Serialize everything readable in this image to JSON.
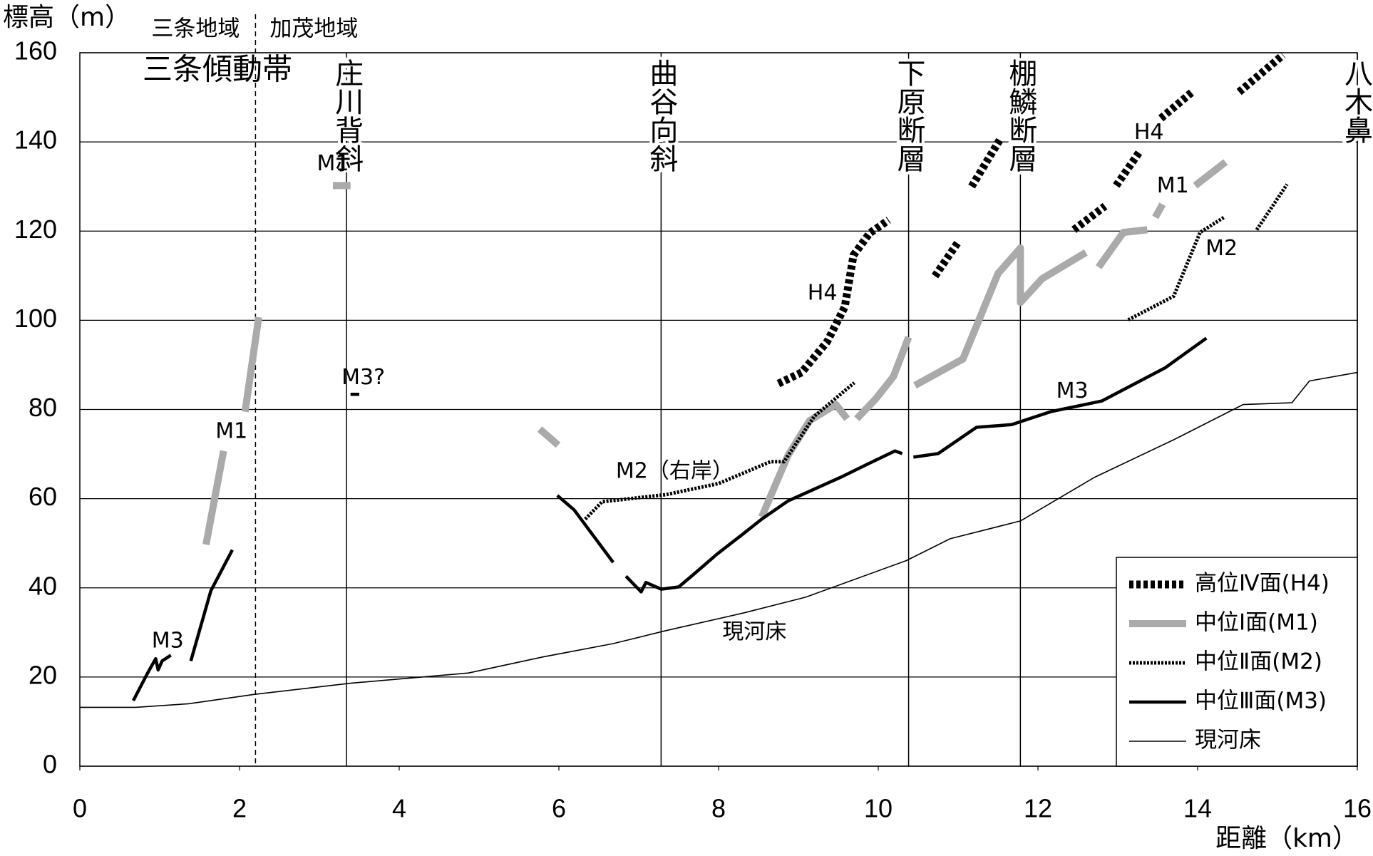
{
  "chart_data": {
    "type": "line",
    "y_label": "標高（m）",
    "x_label": "距離（km）",
    "regions": {
      "left": "三条地域",
      "right": "加茂地域",
      "boundary": 2.2
    },
    "zone_label": "三条傾動帯",
    "xlim": [
      0,
      16
    ],
    "xticks": [
      0,
      2,
      4,
      6,
      8,
      10,
      12,
      14,
      16
    ],
    "ylim": [
      0,
      160
    ],
    "yticks": [
      0,
      20,
      40,
      60,
      80,
      100,
      120,
      140,
      160
    ],
    "grid": true,
    "legend": "lower right",
    "markers": [
      {
        "x": 3.34,
        "label": "庄川背斜"
      },
      {
        "x": 7.28,
        "label": "曲谷向斜"
      },
      {
        "x": 10.38,
        "label": "下原断層"
      },
      {
        "x": 11.78,
        "label": "棚鱗断層"
      },
      {
        "x": 16,
        "label": "八木鼻"
      }
    ],
    "series": [
      {
        "name": "高位Ⅳ面(H4)",
        "color": "#000000",
        "style": "heavy-dashed",
        "x": [
          8.75,
          9.04,
          9.36,
          9.58,
          9.69,
          9.89,
          10.13,
          null,
          10.71,
          11.01,
          null,
          11.17,
          11.52,
          null,
          12.45,
          12.84,
          null,
          12.98,
          13.28,
          null,
          13.54,
          13.93,
          null,
          14.52,
          15.07
        ],
        "values": [
          85.8,
          88.3,
          95.2,
          103,
          114.6,
          119.5,
          122.5,
          null,
          109.9,
          117.8,
          null,
          130,
          140.4,
          null,
          120.3,
          125.6,
          null,
          130.2,
          138,
          null,
          145.3,
          151.2,
          null,
          151.2,
          159.5
        ]
      },
      {
        "name": "中位Ⅰ面(M1)",
        "color": "#aaaaaa",
        "style": "heavy",
        "x": [
          3.17,
          3.39,
          null,
          1.58,
          1.8,
          null,
          2.07,
          2.24,
          null,
          5.76,
          5.99,
          null,
          8.54,
          8.87,
          9.14,
          9.47,
          9.61,
          null,
          9.73,
          9.97,
          10.19,
          10.38,
          null,
          10.46,
          11.06,
          11.5,
          11.78,
          11.78,
          12.05,
          12.6,
          null,
          12.76,
          13.07,
          13.37,
          null,
          13.47,
          13.56,
          null,
          13.97,
          14.35
        ],
        "values": [
          130.2,
          130.2,
          null,
          49.7,
          70.7,
          null,
          79.5,
          100.7,
          null,
          75.6,
          72,
          null,
          55.9,
          69.7,
          77.5,
          81.1,
          77.9,
          null,
          77.9,
          82.4,
          87.4,
          96.2,
          null,
          85.4,
          91.3,
          110.5,
          116.2,
          104,
          109.3,
          115.2,
          null,
          111.9,
          119.7,
          120.3,
          null,
          123.1,
          126,
          null,
          130.2,
          135.5
        ]
      },
      {
        "name": "中位Ⅱ面(M2)",
        "color": "#000000",
        "style": "dotted",
        "x": [
          6.33,
          6.54,
          7.34,
          8.0,
          8.65,
          8.82,
          9.2,
          9.7,
          null,
          13.13,
          13.7,
          14.03,
          14.33,
          null,
          14.74,
          15.12
        ],
        "values": [
          55.4,
          59.3,
          60.9,
          63.4,
          68.3,
          68.3,
          78.5,
          86,
          null,
          100.1,
          105.4,
          119.7,
          123.1,
          null,
          120.3,
          130.5
        ]
      },
      {
        "name": "中位Ⅲ面(M3)",
        "color": "#000000",
        "style": "solid",
        "x": [
          0.67,
          0.84,
          0.95,
          0.98,
          1.03,
          1.14,
          null,
          1.39,
          1.64,
          1.91,
          null,
          3.39,
          3.5,
          null,
          5.98,
          6.19,
          6.68,
          null,
          6.84,
          7.03,
          7.09,
          7.28,
          7.5,
          7.66,
          7.99,
          8.3,
          8.54,
          8.87,
          9.53,
          9.86,
          10.21,
          10.3,
          null,
          10.44,
          10.75,
          11.23,
          11.67,
          12.16,
          12.8,
          13.59,
          14.11
        ],
        "values": [
          14.7,
          20.6,
          24.1,
          21.6,
          23.6,
          24.9,
          null,
          23.6,
          39.3,
          48.5,
          null,
          83.4,
          83.4,
          null,
          60.7,
          57.5,
          45.7,
          null,
          42.6,
          39.1,
          41.2,
          39.7,
          40.2,
          42.6,
          47.7,
          52,
          55.4,
          59.5,
          64.8,
          67.7,
          70.7,
          70.1,
          null,
          69.3,
          70.1,
          76,
          76.6,
          79.5,
          81.9,
          89.3,
          96
        ]
      },
      {
        "name": "現河床",
        "color": "#000000",
        "style": "thin",
        "x": [
          0,
          0.7,
          1.36,
          2.18,
          3.39,
          4.87,
          5.8,
          6.68,
          7.34,
          8.32,
          9.09,
          10.35,
          10.9,
          11.78,
          12.71,
          13.7,
          14.57,
          15.18,
          15.4,
          16
        ],
        "values": [
          13.2,
          13.2,
          14,
          16.1,
          18.6,
          20.9,
          24.5,
          27.5,
          30.4,
          34.4,
          37.9,
          46.1,
          51,
          55,
          64.8,
          73.2,
          81.1,
          81.5,
          86.4,
          88.3
        ]
      }
    ],
    "annotations": [
      {
        "text": "M1",
        "x": 3.17,
        "y": 135
      },
      {
        "text": "M3?",
        "x": 3.55,
        "y": 87
      },
      {
        "text": "M1",
        "x": 1.9,
        "y": 75
      },
      {
        "text": "M3",
        "x": 1.1,
        "y": 28
      },
      {
        "text": "M2（右岸）",
        "x": 7.45,
        "y": 66
      },
      {
        "text": "現河床",
        "x": 8.45,
        "y": 30
      },
      {
        "text": "H4",
        "x": 9.3,
        "y": 106
      },
      {
        "text": "M3",
        "x": 12.43,
        "y": 84
      },
      {
        "text": "H4",
        "x": 13.39,
        "y": 142
      },
      {
        "text": "M1",
        "x": 13.69,
        "y": 130
      },
      {
        "text": "M2",
        "x": 14.3,
        "y": 116
      }
    ]
  }
}
